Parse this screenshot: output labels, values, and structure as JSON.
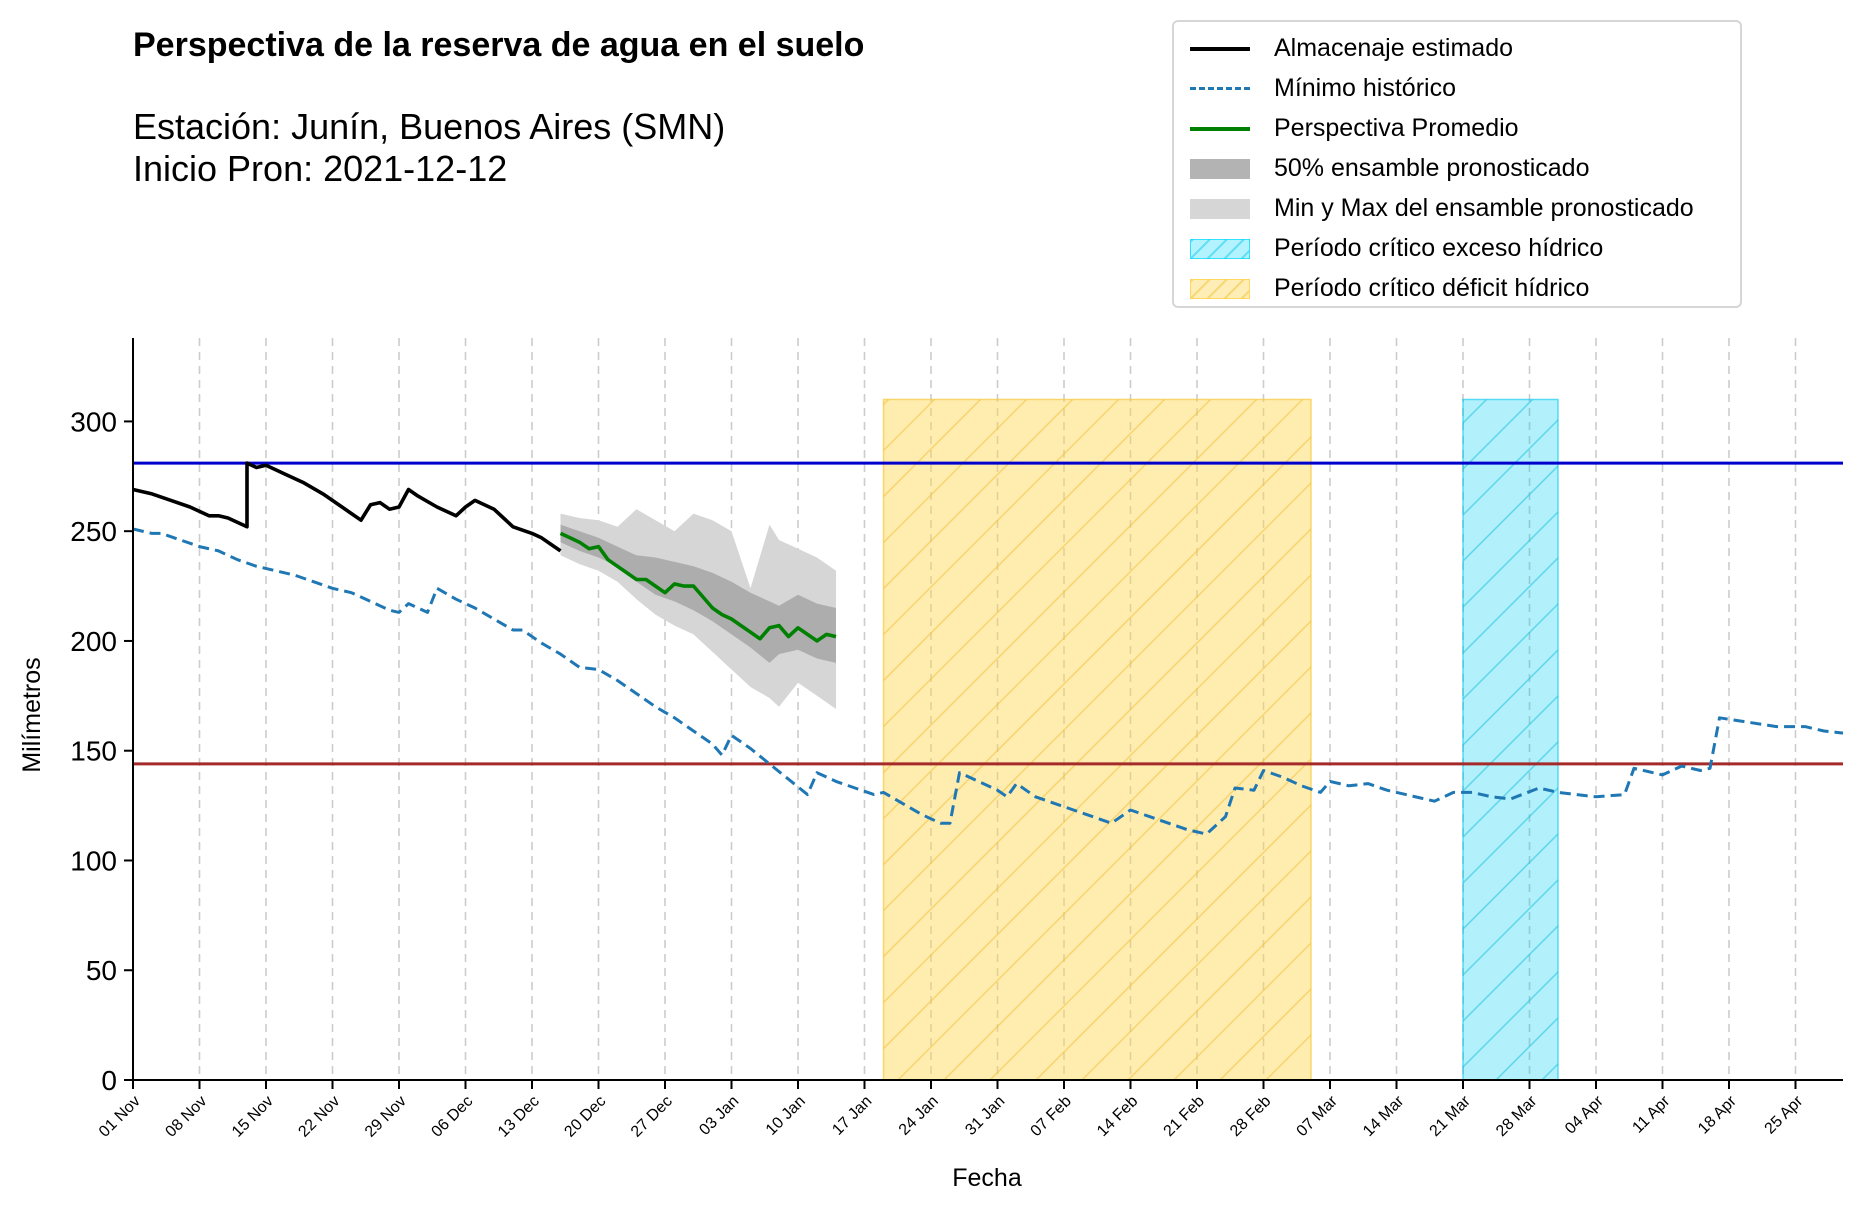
{
  "header": {
    "title": "Perspectiva de la reserva de agua en el suelo",
    "station": "Estación: Junín, Buenos Aires (SMN)",
    "forecast_start": "Inicio Pron: 2021-12-12"
  },
  "legend": [
    {
      "key": "obs",
      "label": "Almacenaje estimado",
      "style": "line",
      "color": "#000000"
    },
    {
      "key": "min",
      "label": "Mínimo histórico",
      "style": "dashed",
      "color": "#1f77b4"
    },
    {
      "key": "mean",
      "label": "Perspectiva Promedio",
      "style": "line",
      "color": "#008000"
    },
    {
      "key": "p50",
      "label": "50% ensamble pronosticado",
      "style": "fill",
      "color": "#a9a9a9"
    },
    {
      "key": "minmax",
      "label": "Min y Max del ensamble pronosticado",
      "style": "fill",
      "color": "#d3d3d3"
    },
    {
      "key": "exceso",
      "label": "Período crítico exceso hídrico",
      "style": "hatch",
      "color": "#00d8ff"
    },
    {
      "key": "deficit",
      "label": "Período crítico déficit hídrico",
      "style": "hatch",
      "color": "#ffd24a"
    }
  ],
  "chart_data": {
    "type": "line",
    "xlabel": "Fecha",
    "ylabel": "Milímetros",
    "x_domain": [
      "2021-11-01",
      "2022-04-30"
    ],
    "ylim": [
      0,
      338
    ],
    "yticks": [
      0,
      50,
      100,
      150,
      200,
      250,
      300
    ],
    "xtick_labels": [
      "01 Nov",
      "08 Nov",
      "15 Nov",
      "22 Nov",
      "29 Nov",
      "06 Dec",
      "13 Dec",
      "20 Dec",
      "27 Dec",
      "03 Jan",
      "10 Jan",
      "17 Jan",
      "24 Jan",
      "31 Jan",
      "07 Feb",
      "14 Feb",
      "21 Feb",
      "28 Feb",
      "07 Mar",
      "14 Mar",
      "21 Mar",
      "28 Mar",
      "04 Apr",
      "11 Apr",
      "18 Apr",
      "25 Apr"
    ],
    "xtick_dates": [
      "2021-11-01",
      "2021-11-08",
      "2021-11-15",
      "2021-11-22",
      "2021-11-29",
      "2021-12-06",
      "2021-12-13",
      "2021-12-20",
      "2021-12-27",
      "2022-01-03",
      "2022-01-10",
      "2022-01-17",
      "2022-01-24",
      "2022-01-31",
      "2022-02-07",
      "2022-02-14",
      "2022-02-21",
      "2022-02-28",
      "2022-03-07",
      "2022-03-14",
      "2022-03-21",
      "2022-03-28",
      "2022-04-04",
      "2022-04-11",
      "2022-04-18",
      "2022-04-25"
    ],
    "grid": "vertical dashed",
    "legend_position": "top-right",
    "hlines": [
      {
        "y": 281,
        "color": "#0000cd"
      },
      {
        "y": 144,
        "color": "#a52a2a"
      }
    ],
    "periods": [
      {
        "name": "Período crítico déficit hídrico",
        "start": "2022-01-19",
        "end": "2022-03-05",
        "ymax": 310,
        "color": "#ffd24a"
      },
      {
        "name": "Período crítico exceso hídrico",
        "start": "2022-03-21",
        "end": "2022-03-31",
        "ymax": 310,
        "color": "#00d8ff"
      }
    ],
    "series": [
      {
        "name": "Almacenaje estimado",
        "color": "#000000",
        "style": "solid",
        "points": [
          [
            "2021-11-01",
            269
          ],
          [
            "2021-11-03",
            267
          ],
          [
            "2021-11-05",
            264
          ],
          [
            "2021-11-07",
            261
          ],
          [
            "2021-11-08",
            259
          ],
          [
            "2021-11-09",
            257
          ],
          [
            "2021-11-10",
            257
          ],
          [
            "2021-11-11",
            256
          ],
          [
            "2021-11-13",
            252
          ],
          [
            "2021-11-13",
            252
          ],
          [
            "2021-11-13",
            281
          ],
          [
            "2021-11-14",
            279
          ],
          [
            "2021-11-15",
            280
          ],
          [
            "2021-11-17",
            276
          ],
          [
            "2021-11-19",
            272
          ],
          [
            "2021-11-21",
            267
          ],
          [
            "2021-11-23",
            261
          ],
          [
            "2021-11-24",
            258
          ],
          [
            "2021-11-25",
            255
          ],
          [
            "2021-11-26",
            262
          ],
          [
            "2021-11-27",
            263
          ],
          [
            "2021-11-28",
            260
          ],
          [
            "2021-11-29",
            261
          ],
          [
            "2021-11-30",
            269
          ],
          [
            "2021-12-01",
            266
          ],
          [
            "2021-12-03",
            261
          ],
          [
            "2021-12-05",
            257
          ],
          [
            "2021-12-06",
            261
          ],
          [
            "2021-12-07",
            264
          ],
          [
            "2021-12-09",
            260
          ],
          [
            "2021-12-10",
            256
          ],
          [
            "2021-12-11",
            252
          ],
          [
            "2021-12-13",
            249
          ],
          [
            "2021-12-14",
            247
          ],
          [
            "2021-12-15",
            244
          ],
          [
            "2021-12-16",
            241
          ]
        ]
      },
      {
        "name": "Mínimo histórico",
        "color": "#1f77b4",
        "style": "dashed",
        "points": [
          [
            "2021-11-01",
            251
          ],
          [
            "2021-11-03",
            249
          ],
          [
            "2021-11-04",
            249
          ],
          [
            "2021-11-06",
            246
          ],
          [
            "2021-11-08",
            243
          ],
          [
            "2021-11-10",
            241
          ],
          [
            "2021-11-12",
            237
          ],
          [
            "2021-11-14",
            234
          ],
          [
            "2021-11-16",
            232
          ],
          [
            "2021-11-18",
            230
          ],
          [
            "2021-11-20",
            227
          ],
          [
            "2021-11-22",
            224
          ],
          [
            "2021-11-24",
            222
          ],
          [
            "2021-11-26",
            218
          ],
          [
            "2021-11-28",
            214
          ],
          [
            "2021-11-29",
            213
          ],
          [
            "2021-11-30",
            217
          ],
          [
            "2021-12-01",
            215
          ],
          [
            "2021-12-02",
            213
          ],
          [
            "2021-12-03",
            224
          ],
          [
            "2021-12-05",
            219
          ],
          [
            "2021-12-07",
            215
          ],
          [
            "2021-12-09",
            210
          ],
          [
            "2021-12-11",
            205
          ],
          [
            "2021-12-12",
            205
          ],
          [
            "2021-12-14",
            199
          ],
          [
            "2021-12-16",
            194
          ],
          [
            "2021-12-18",
            188
          ],
          [
            "2021-12-20",
            187
          ],
          [
            "2021-12-22",
            182
          ],
          [
            "2021-12-24",
            176
          ],
          [
            "2021-12-26",
            170
          ],
          [
            "2021-12-28",
            165
          ],
          [
            "2021-12-30",
            159
          ],
          [
            "2022-01-01",
            153
          ],
          [
            "2022-01-02",
            148
          ],
          [
            "2022-01-03",
            157
          ],
          [
            "2022-01-05",
            151
          ],
          [
            "2022-01-07",
            144
          ],
          [
            "2022-01-09",
            137
          ],
          [
            "2022-01-11",
            130
          ],
          [
            "2022-01-12",
            140
          ],
          [
            "2022-01-14",
            136
          ],
          [
            "2022-01-16",
            133
          ],
          [
            "2022-01-18",
            130
          ],
          [
            "2022-01-19",
            131
          ],
          [
            "2022-01-21",
            126
          ],
          [
            "2022-01-23",
            121
          ],
          [
            "2022-01-25",
            117
          ],
          [
            "2022-01-26",
            117
          ],
          [
            "2022-01-27",
            140
          ],
          [
            "2022-01-29",
            136
          ],
          [
            "2022-01-31",
            132
          ],
          [
            "2022-02-01",
            129
          ],
          [
            "2022-02-02",
            135
          ],
          [
            "2022-02-04",
            129
          ],
          [
            "2022-02-06",
            126
          ],
          [
            "2022-02-08",
            123
          ],
          [
            "2022-02-10",
            120
          ],
          [
            "2022-02-12",
            117
          ],
          [
            "2022-02-14",
            123
          ],
          [
            "2022-02-16",
            120
          ],
          [
            "2022-02-18",
            117
          ],
          [
            "2022-02-20",
            114
          ],
          [
            "2022-02-22",
            112
          ],
          [
            "2022-02-24",
            120
          ],
          [
            "2022-02-25",
            133
          ],
          [
            "2022-02-27",
            132
          ],
          [
            "2022-02-28",
            141
          ],
          [
            "2022-03-02",
            138
          ],
          [
            "2022-03-04",
            134
          ],
          [
            "2022-03-06",
            131
          ],
          [
            "2022-03-07",
            136
          ],
          [
            "2022-03-09",
            134
          ],
          [
            "2022-03-11",
            135
          ],
          [
            "2022-03-13",
            132
          ],
          [
            "2022-03-15",
            130
          ],
          [
            "2022-03-17",
            128
          ],
          [
            "2022-03-18",
            127
          ],
          [
            "2022-03-20",
            131
          ],
          [
            "2022-03-22",
            131
          ],
          [
            "2022-03-24",
            129
          ],
          [
            "2022-03-26",
            128
          ],
          [
            "2022-03-29",
            133
          ],
          [
            "2022-03-31",
            131
          ],
          [
            "2022-04-02",
            130
          ],
          [
            "2022-04-04",
            129
          ],
          [
            "2022-04-07",
            130
          ],
          [
            "2022-04-08",
            142
          ],
          [
            "2022-04-11",
            139
          ],
          [
            "2022-04-13",
            143
          ],
          [
            "2022-04-15",
            141
          ],
          [
            "2022-04-16",
            142
          ],
          [
            "2022-04-17",
            165
          ],
          [
            "2022-04-20",
            163
          ],
          [
            "2022-04-23",
            161
          ],
          [
            "2022-04-26",
            161
          ],
          [
            "2022-04-28",
            159
          ],
          [
            "2022-04-30",
            158
          ]
        ]
      },
      {
        "name": "Perspectiva Promedio",
        "color": "#008000",
        "style": "solid",
        "points": [
          [
            "2021-12-16",
            249
          ],
          [
            "2021-12-17",
            247
          ],
          [
            "2021-12-18",
            245
          ],
          [
            "2021-12-19",
            242
          ],
          [
            "2021-12-20",
            243
          ],
          [
            "2021-12-21",
            237
          ],
          [
            "2021-12-22",
            234
          ],
          [
            "2021-12-23",
            231
          ],
          [
            "2021-12-24",
            228
          ],
          [
            "2021-12-25",
            228
          ],
          [
            "2021-12-26",
            225
          ],
          [
            "2021-12-27",
            222
          ],
          [
            "2021-12-28",
            226
          ],
          [
            "2021-12-29",
            225
          ],
          [
            "2021-12-30",
            225
          ],
          [
            "2021-12-31",
            220
          ],
          [
            "2022-01-01",
            215
          ],
          [
            "2022-01-02",
            212
          ],
          [
            "2022-01-03",
            210
          ],
          [
            "2022-01-04",
            207
          ],
          [
            "2022-01-05",
            204
          ],
          [
            "2022-01-06",
            201
          ],
          [
            "2022-01-07",
            206
          ],
          [
            "2022-01-08",
            207
          ],
          [
            "2022-01-09",
            202
          ],
          [
            "2022-01-10",
            206
          ],
          [
            "2022-01-11",
            203
          ],
          [
            "2022-01-12",
            200
          ],
          [
            "2022-01-13",
            203
          ],
          [
            "2022-01-14",
            202
          ]
        ]
      }
    ],
    "bands": [
      {
        "name": "Min y Max del ensamble pronosticado",
        "color": "#d3d3d3",
        "x": [
          "2021-12-16",
          "2021-12-18",
          "2021-12-20",
          "2021-12-22",
          "2021-12-24",
          "2021-12-26",
          "2021-12-28",
          "2021-12-30",
          "2022-01-01",
          "2022-01-03",
          "2022-01-05",
          "2022-01-07",
          "2022-01-08",
          "2022-01-10",
          "2022-01-12",
          "2022-01-14"
        ],
        "low": [
          239,
          235,
          232,
          227,
          219,
          212,
          207,
          203,
          195,
          187,
          179,
          174,
          170,
          181,
          175,
          169
        ],
        "high": [
          258,
          256,
          255,
          252,
          260,
          255,
          250,
          258,
          255,
          250,
          224,
          253,
          246,
          242,
          238,
          232
        ]
      },
      {
        "name": "50% ensamble pronosticado",
        "color": "#a9a9a9",
        "x": [
          "2021-12-16",
          "2021-12-18",
          "2021-12-20",
          "2021-12-22",
          "2021-12-24",
          "2021-12-26",
          "2021-12-28",
          "2021-12-30",
          "2022-01-01",
          "2022-01-03",
          "2022-01-05",
          "2022-01-07",
          "2022-01-08",
          "2022-01-10",
          "2022-01-12",
          "2022-01-14"
        ],
        "low": [
          245,
          241,
          238,
          234,
          227,
          221,
          218,
          214,
          209,
          203,
          197,
          190,
          194,
          196,
          192,
          190
        ],
        "high": [
          253,
          250,
          247,
          243,
          239,
          238,
          236,
          234,
          231,
          227,
          222,
          218,
          216,
          221,
          217,
          215
        ]
      }
    ]
  }
}
